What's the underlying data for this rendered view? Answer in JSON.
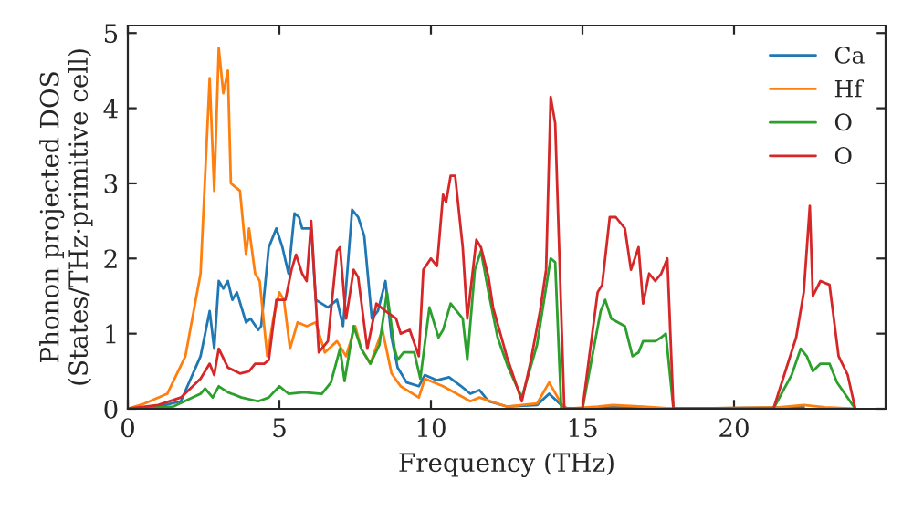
{
  "chart_data": {
    "type": "line",
    "xlabel": "Frequency (THz)",
    "ylabel": "Phonon projected DOS\n(States/THz·primitive cell)",
    "xlim": [
      0,
      25
    ],
    "ylim": [
      0,
      5.1
    ],
    "xticks": [
      0,
      5,
      10,
      15,
      20
    ],
    "yticks": [
      0,
      1,
      2,
      3,
      4,
      5
    ],
    "legend": "top right",
    "series": [
      {
        "name": "Ca",
        "color": "#1f77b4",
        "x": [
          0,
          1.0,
          1.75,
          2.4,
          2.7,
          2.85,
          3.0,
          3.15,
          3.3,
          3.45,
          3.6,
          3.75,
          3.9,
          4.05,
          4.3,
          4.4,
          4.65,
          4.9,
          5.1,
          5.3,
          5.5,
          5.65,
          5.75,
          5.9,
          6.05,
          6.2,
          6.6,
          6.9,
          7.1,
          7.4,
          7.6,
          7.8,
          8.05,
          8.25,
          8.5,
          8.7,
          8.9,
          9.2,
          9.6,
          9.8,
          10.2,
          10.6,
          11.0,
          11.3,
          11.6,
          11.9,
          12.5,
          13.5,
          13.9,
          14.3,
          14.5,
          16.0,
          18.0,
          22.3
        ],
        "values": [
          0,
          0.03,
          0.1,
          0.7,
          1.3,
          0.8,
          1.7,
          1.6,
          1.7,
          1.45,
          1.55,
          1.35,
          1.15,
          1.2,
          1.05,
          1.1,
          2.15,
          2.4,
          2.15,
          1.8,
          2.6,
          2.55,
          2.4,
          2.4,
          2.4,
          1.45,
          1.35,
          1.45,
          1.1,
          2.65,
          2.55,
          2.3,
          1.2,
          1.3,
          1.7,
          0.95,
          0.55,
          0.35,
          0.3,
          0.45,
          0.38,
          0.42,
          0.3,
          0.2,
          0.25,
          0.1,
          0.03,
          0.05,
          0.2,
          0.05,
          0,
          0.02,
          0,
          0.02
        ]
      },
      {
        "name": "Hf",
        "color": "#ff7f0e",
        "x": [
          0,
          0.55,
          1.3,
          1.9,
          2.4,
          2.7,
          2.85,
          3.0,
          3.15,
          3.3,
          3.4,
          3.7,
          3.9,
          4.0,
          4.2,
          4.35,
          4.6,
          4.8,
          5.0,
          5.15,
          5.35,
          5.6,
          5.9,
          6.2,
          6.5,
          6.9,
          7.2,
          7.5,
          7.7,
          8.0,
          8.4,
          8.7,
          9.0,
          9.6,
          9.8,
          10.4,
          11.3,
          11.6,
          12.5,
          13.5,
          13.9,
          14.3,
          14.5,
          15.5,
          16.0,
          17.0,
          18.0,
          21.5,
          22.3,
          23.0,
          24.0
        ],
        "values": [
          0,
          0.07,
          0.2,
          0.7,
          1.8,
          4.4,
          2.9,
          4.8,
          4.2,
          4.5,
          3.0,
          2.9,
          2.05,
          2.4,
          1.8,
          1.7,
          0.7,
          1.2,
          1.55,
          1.45,
          0.8,
          1.15,
          1.1,
          1.15,
          0.75,
          0.9,
          0.7,
          1.1,
          0.8,
          0.6,
          1.05,
          0.47,
          0.3,
          0.15,
          0.4,
          0.3,
          0.1,
          0.15,
          0.03,
          0.07,
          0.35,
          0.07,
          0,
          0.03,
          0.05,
          0.03,
          0,
          0.02,
          0.05,
          0.02,
          0
        ]
      },
      {
        "name": "O",
        "color": "#2ca02c",
        "x": [
          0,
          1.5,
          2.4,
          2.55,
          2.8,
          3.0,
          3.3,
          3.75,
          4.3,
          4.65,
          5.0,
          5.3,
          5.8,
          6.4,
          6.7,
          7.0,
          7.15,
          7.45,
          7.7,
          8.0,
          8.3,
          8.55,
          8.8,
          8.9,
          9.1,
          9.45,
          9.65,
          9.95,
          10.25,
          10.4,
          10.65,
          11.05,
          11.2,
          11.45,
          11.65,
          11.9,
          12.2,
          12.55,
          13.0,
          13.5,
          13.95,
          14.1,
          14.3,
          15.0,
          15.6,
          15.75,
          15.95,
          16.4,
          16.65,
          16.85,
          17.0,
          17.2,
          17.4,
          17.6,
          17.75,
          18.0,
          21.3,
          21.9,
          22.2,
          22.4,
          22.6,
          22.85,
          23.15,
          23.4,
          24.0
        ],
        "values": [
          0,
          0.03,
          0.2,
          0.27,
          0.15,
          0.3,
          0.22,
          0.15,
          0.1,
          0.15,
          0.3,
          0.2,
          0.22,
          0.2,
          0.35,
          0.8,
          0.37,
          1.1,
          0.8,
          0.6,
          0.85,
          1.55,
          0.8,
          0.65,
          0.75,
          0.75,
          0.4,
          1.35,
          0.95,
          1.05,
          1.4,
          1.2,
          0.65,
          1.85,
          2.1,
          1.55,
          0.95,
          0.55,
          0.15,
          0.85,
          2.0,
          1.95,
          0,
          0,
          1.3,
          1.45,
          1.2,
          1.1,
          0.7,
          0.75,
          0.9,
          0.9,
          0.9,
          0.95,
          1.0,
          0,
          0,
          0.45,
          0.8,
          0.7,
          0.5,
          0.6,
          0.6,
          0.35,
          0
        ]
      },
      {
        "name": "O",
        "color": "#d62728",
        "x": [
          0,
          1.0,
          1.75,
          2.4,
          2.7,
          2.85,
          3.0,
          3.3,
          3.7,
          4.0,
          4.2,
          4.5,
          4.65,
          4.9,
          5.2,
          5.4,
          5.55,
          5.75,
          5.9,
          6.05,
          6.2,
          6.3,
          6.6,
          6.9,
          7.0,
          7.2,
          7.45,
          7.6,
          7.9,
          8.2,
          8.5,
          8.85,
          9.0,
          9.3,
          9.6,
          9.75,
          10.0,
          10.2,
          10.4,
          10.5,
          10.65,
          10.8,
          11.05,
          11.2,
          11.5,
          11.65,
          11.9,
          12.05,
          12.5,
          13.0,
          13.3,
          13.6,
          13.8,
          13.95,
          14.1,
          14.4,
          15.0,
          15.5,
          15.65,
          15.9,
          16.1,
          16.4,
          16.6,
          16.85,
          17.0,
          17.2,
          17.4,
          17.6,
          17.8,
          18.0,
          21.3,
          22.05,
          22.3,
          22.5,
          22.6,
          22.85,
          23.15,
          23.45,
          23.75,
          24.0
        ],
        "values": [
          0,
          0.05,
          0.15,
          0.4,
          0.6,
          0.45,
          0.8,
          0.55,
          0.47,
          0.5,
          0.6,
          0.6,
          0.65,
          1.45,
          1.45,
          1.85,
          2.05,
          1.8,
          1.7,
          2.5,
          1.45,
          0.75,
          0.9,
          2.1,
          2.15,
          1.2,
          1.85,
          1.75,
          0.8,
          1.4,
          1.3,
          1.2,
          1.0,
          1.05,
          0.7,
          1.85,
          2.0,
          1.9,
          2.85,
          2.75,
          3.1,
          3.1,
          2.15,
          1.2,
          2.25,
          2.15,
          1.75,
          1.35,
          0.7,
          0.1,
          0.65,
          1.3,
          1.85,
          4.15,
          3.8,
          0,
          0,
          1.55,
          1.65,
          2.55,
          2.55,
          2.4,
          1.85,
          2.15,
          1.4,
          1.8,
          1.7,
          1.8,
          2.0,
          0,
          0,
          0.95,
          1.55,
          2.7,
          1.5,
          1.7,
          1.65,
          0.7,
          0.45,
          0
        ]
      }
    ]
  }
}
